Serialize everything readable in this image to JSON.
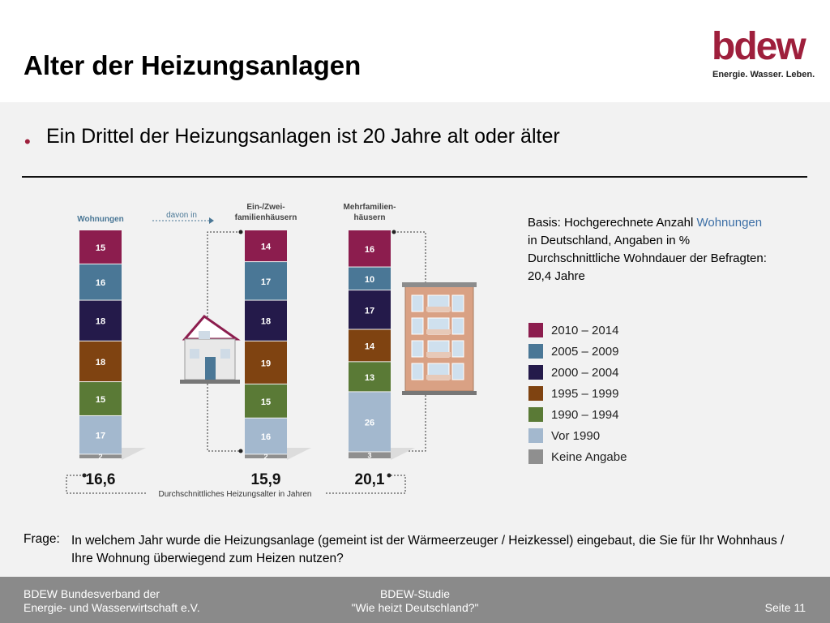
{
  "page": {
    "title": "Alter der Heizungsanlagen",
    "bullet": "Ein Drittel der Heizungsanlagen ist 20 Jahre alt oder älter",
    "basis_line1_prefix": "Basis: Hochgerechnete Anzahl ",
    "basis_line1_highlight": "Wohnungen",
    "basis_line2": "in Deutschland, Angaben in %",
    "basis_line3": "Durchschnittliche Wohndauer der Befragten:",
    "basis_line4": "20,4 Jahre",
    "frage_label": "Frage:",
    "frage_text": "In welchem Jahr wurde die Heizungsanlage (gemeint ist der Wärmeerzeuger / Heizkessel) eingebaut, die Sie für Ihr Wohnhaus / Ihre Wohnung überwiegend zum Heizen nutzen?"
  },
  "logo": {
    "word": "bdew",
    "tagline": "Energie. Wasser. Leben."
  },
  "footer": {
    "left1": "BDEW Bundesverband der",
    "left2": "Energie- und Wasserwirtschaft e.V.",
    "center1": "BDEW-Studie",
    "center2": "\"Wie heizt Deutschland?\"",
    "right": "Seite 11"
  },
  "colors": {
    "accent": "#9e1f3c",
    "s2010": "#8c1d4e",
    "s2005": "#4a7796",
    "s2000": "#241a4a",
    "s1995": "#7f4311",
    "s1990": "#5a7a36",
    "vor1990": "#a3b8ce",
    "keine": "#8f8f8f"
  },
  "chart_data": {
    "type": "bar",
    "stacked": true,
    "categories": [
      "Wohnungen",
      "Ein-/Zwei- familienhäusern",
      "Mehrfamilien- häusern"
    ],
    "series": [
      {
        "name": "2010 – 2014",
        "values": [
          15,
          14,
          16
        ]
      },
      {
        "name": "2005 – 2009",
        "values": [
          16,
          17,
          10
        ]
      },
      {
        "name": "2000 – 2004",
        "values": [
          18,
          18,
          17
        ]
      },
      {
        "name": "1995 – 1999",
        "values": [
          18,
          19,
          14
        ]
      },
      {
        "name": "1990 – 1994",
        "values": [
          15,
          15,
          13
        ]
      },
      {
        "name": "Vor 1990",
        "values": [
          17,
          16,
          26
        ]
      },
      {
        "name": "Keine Angabe",
        "values": [
          2,
          2,
          3
        ]
      }
    ],
    "averages": [
      "16,6",
      "15,9",
      "20,1"
    ],
    "average_label": "Durchschnittliches Heizungsalter in Jahren",
    "arrow_label": "davon in",
    "header_lines": [
      [
        "Wohnungen"
      ],
      [
        "Ein-/Zwei-",
        "familienhäusern"
      ],
      [
        "Mehrfamilien-",
        "häusern"
      ]
    ],
    "unit": "%"
  }
}
